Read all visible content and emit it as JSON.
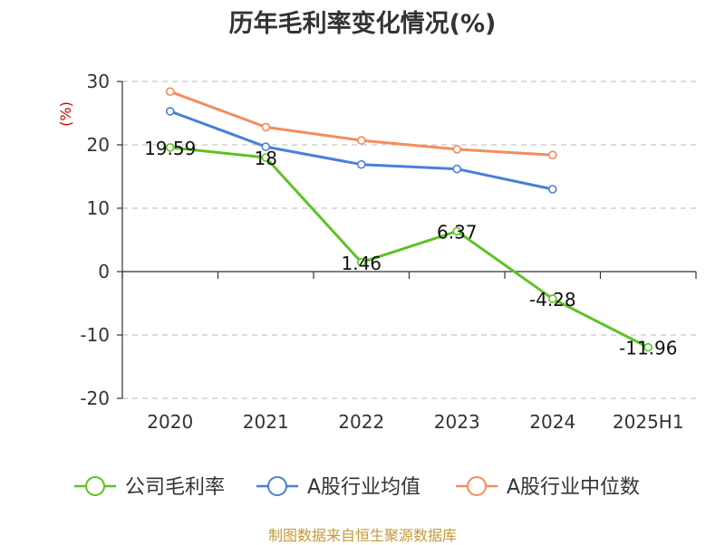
{
  "chart_data": {
    "type": "line",
    "title": "历年毛利率变化情况(%)",
    "ylabel": "(%)",
    "categories": [
      "2020",
      "2021",
      "2022",
      "2023",
      "2024",
      "2025H1"
    ],
    "yticks": [
      30,
      20,
      10,
      0,
      -10,
      -20
    ],
    "ylim": [
      -20,
      30
    ],
    "grid": true,
    "legend_position": "bottom",
    "series": [
      {
        "name": "公司毛利率",
        "color": "#5ec224",
        "values": [
          19.59,
          18,
          1.46,
          6.37,
          -4.28,
          -11.96
        ],
        "labels": [
          "19.59",
          "18",
          "1.46",
          "6.37",
          "-4.28",
          "-11.96"
        ]
      },
      {
        "name": "A股行业均值",
        "color": "#4a7fd8",
        "values": [
          25.3,
          19.7,
          16.9,
          16.2,
          13.0,
          null
        ]
      },
      {
        "name": "A股行业中位数",
        "color": "#f58c5a",
        "values": [
          28.4,
          22.8,
          20.7,
          19.3,
          18.4,
          null
        ]
      }
    ]
  },
  "footer": {
    "source": "制图数据来自恒生聚源数据库"
  }
}
